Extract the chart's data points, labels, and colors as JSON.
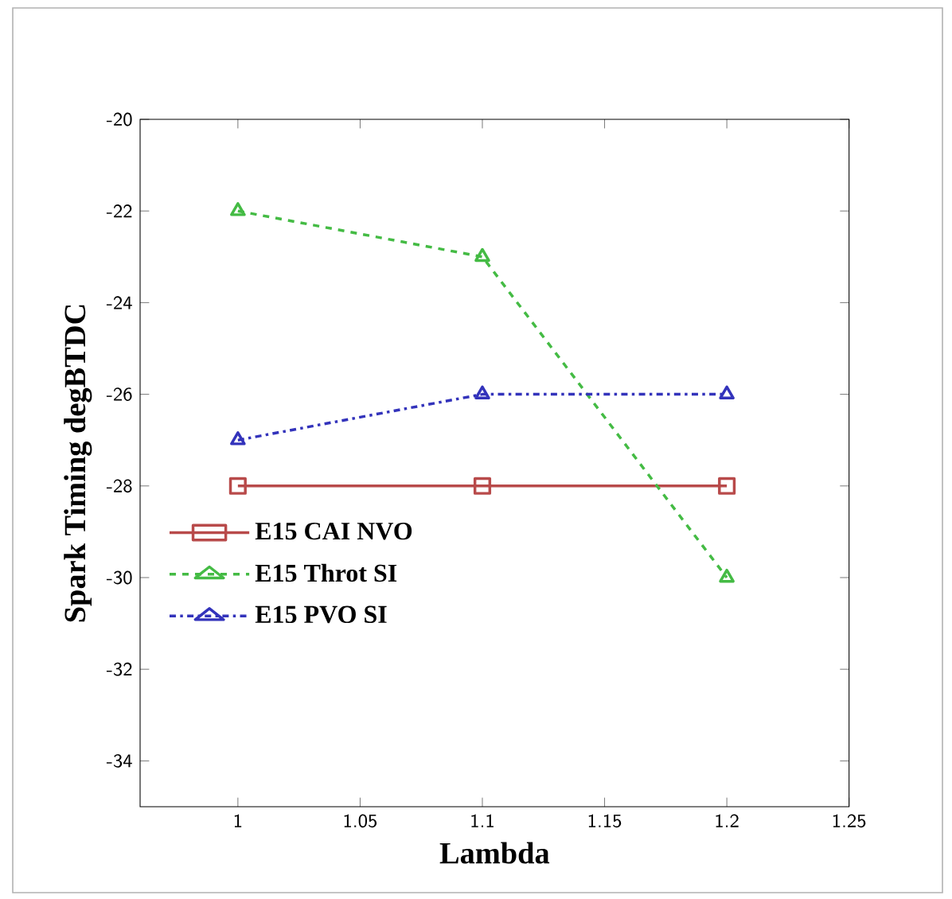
{
  "chart_data": {
    "type": "line",
    "xlabel": "Lambda",
    "ylabel": "Spark Timing degBTDC",
    "x": [
      1,
      1.1,
      1.2
    ],
    "series": [
      {
        "name": "E15 CAI NVO",
        "color": "#b84a4a",
        "values": [
          -28,
          -28,
          -28
        ],
        "marker": "square",
        "line_style": "solid"
      },
      {
        "name": "E15 Throt SI",
        "color": "#44bb44",
        "values": [
          -22,
          -23,
          -30
        ],
        "marker": "triangle",
        "line_style": "dashed"
      },
      {
        "name": "E15 PVO SI",
        "color": "#3333bb",
        "values": [
          -27,
          -26,
          -26
        ],
        "marker": "triangle down",
        "line_style": "dashdot"
      }
    ],
    "xlim": [
      0.96,
      1.25
    ],
    "xticks": [
      1,
      1.05,
      1.1,
      1.15,
      1.2,
      1.25
    ],
    "ylim": [
      -35,
      -20
    ],
    "yticks": [
      -34,
      -32,
      -30,
      -28,
      -26,
      -24,
      -22,
      -20
    ],
    "grid": false,
    "legend": "bottom left"
  }
}
